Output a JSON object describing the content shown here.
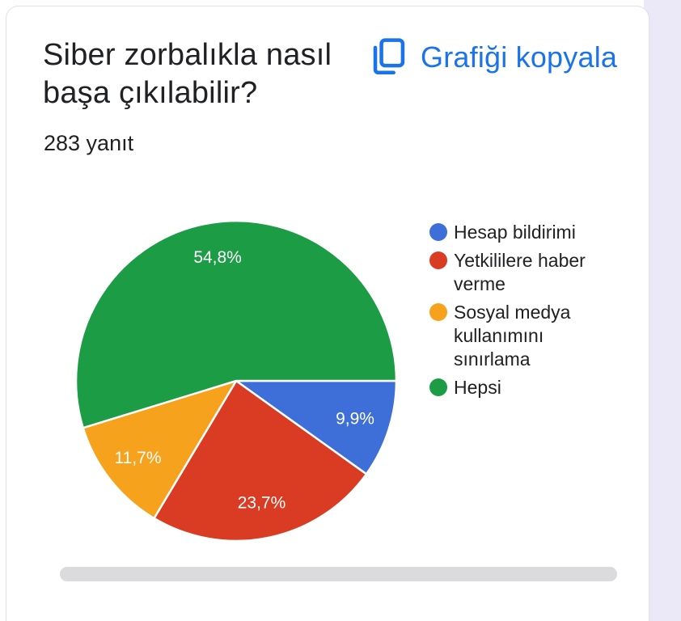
{
  "card": {
    "title": "Siber zorbalıkla nasıl\nbaşa çıkılabilir?",
    "responses_label": "283 yanıt",
    "copy_button_label": "Grafiği kopyala"
  },
  "chart_data": {
    "type": "pie",
    "title": "Siber zorbalıkla nasıl başa çıkılabilir?",
    "subtitle": "283 yanıt",
    "total_responses": 283,
    "legend_position": "right",
    "start_angle_deg": 0,
    "direction": "clockwise",
    "slices": [
      {
        "label": "Hesap bildirimi",
        "percent": 9.9,
        "percent_label": "9,9%",
        "color": "#3E6FD8"
      },
      {
        "label": "Yetkililere haber verme",
        "percent": 23.7,
        "percent_label": "23,7%",
        "color": "#DA3B23"
      },
      {
        "label": "Sosyal medya kullanımını sınırlama",
        "percent": 11.7,
        "percent_label": "11,7%",
        "color": "#F7A21C"
      },
      {
        "label": "Hepsi",
        "percent": 54.8,
        "percent_label": "54,8%",
        "color": "#1B9C45"
      }
    ]
  },
  "colors": {
    "link_blue": "#1A73E8",
    "text_dark": "#202124",
    "side_strip": "#EBE9F7",
    "card_border": "#E2E1E7",
    "scrollbar": "#DBDBDE",
    "slice_separator": "#FFFFFF",
    "slice_label_text": "#FFFFFF"
  }
}
